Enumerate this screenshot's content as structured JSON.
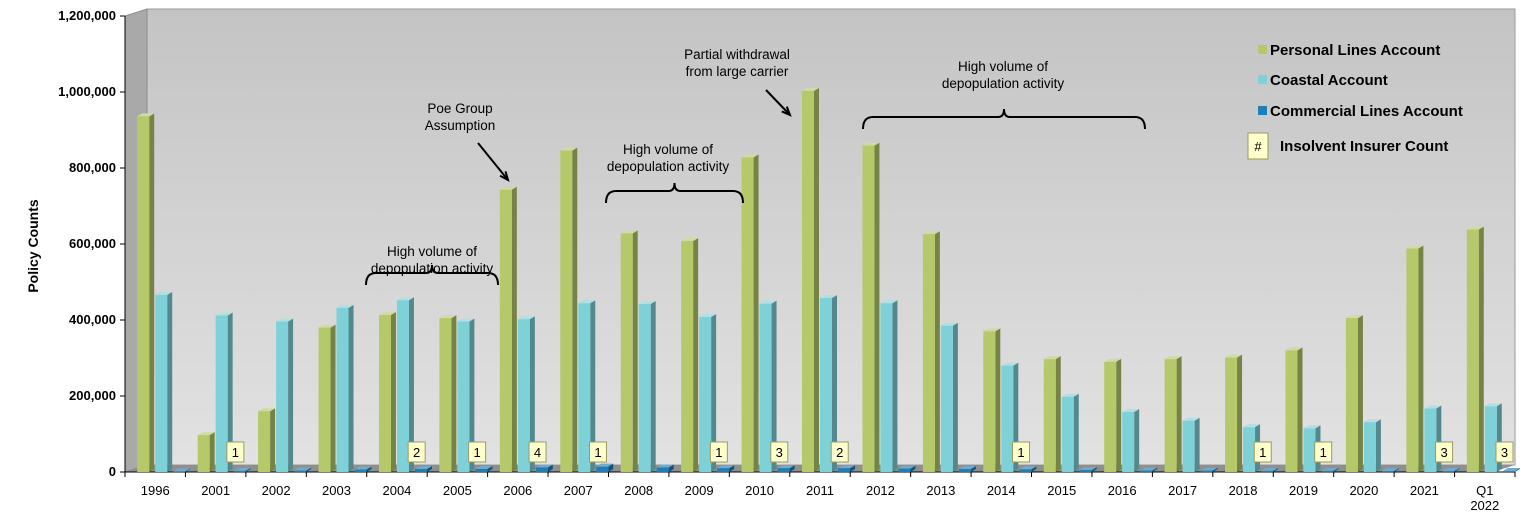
{
  "chart_data": {
    "type": "bar",
    "ylabel": "Policy Counts",
    "ylim": [
      0,
      1200000
    ],
    "yticks": [
      0,
      200000,
      400000,
      600000,
      800000,
      1000000,
      1200000
    ],
    "ytick_labels": [
      "0",
      "200,000",
      "400,000",
      "600,000",
      "800,000",
      "1,000,000",
      "1,200,000"
    ],
    "categories": [
      "1996",
      "2001",
      "2002",
      "2003",
      "2004",
      "2005",
      "2006",
      "2007",
      "2008",
      "2009",
      "2010",
      "2011",
      "2012",
      "2013",
      "2014",
      "2015",
      "2016",
      "2017",
      "2018",
      "2019",
      "2020",
      "2021",
      "Q1 2022"
    ],
    "category_labels": [
      [
        "1996"
      ],
      [
        "2001"
      ],
      [
        "2002"
      ],
      [
        "2003"
      ],
      [
        "2004"
      ],
      [
        "2005"
      ],
      [
        "2006"
      ],
      [
        "2007"
      ],
      [
        "2008"
      ],
      [
        "2009"
      ],
      [
        "2010"
      ],
      [
        "2011"
      ],
      [
        "2012"
      ],
      [
        "2013"
      ],
      [
        "2014"
      ],
      [
        "2015"
      ],
      [
        "2016"
      ],
      [
        "2017"
      ],
      [
        "2018"
      ],
      [
        "2019"
      ],
      [
        "2020"
      ],
      [
        "2021"
      ],
      [
        "Q1",
        "2022"
      ]
    ],
    "series": [
      {
        "name": "Personal Lines Account",
        "color": "#b5c96a",
        "values": [
          936000,
          97000,
          160000,
          380000,
          413000,
          405000,
          743000,
          846000,
          628000,
          608000,
          828000,
          1003000,
          859000,
          626000,
          370000,
          297000,
          290000,
          297000,
          301000,
          320000,
          405000,
          588000,
          638000
        ]
      },
      {
        "name": "Coastal Account",
        "color": "#7fd1d8",
        "values": [
          466000,
          412000,
          396000,
          432000,
          452000,
          396000,
          402000,
          444000,
          442000,
          408000,
          443000,
          458000,
          444000,
          385000,
          280000,
          198000,
          158000,
          135000,
          118000,
          115000,
          131000,
          167000,
          173000
        ]
      },
      {
        "name": "Commercial Lines Account",
        "color": "#1e7fb8",
        "values": [
          1500,
          3000,
          3500,
          6500,
          8000,
          8000,
          12000,
          14000,
          12000,
          10000,
          10000,
          10000,
          9000,
          8000,
          7000,
          5000,
          4000,
          3500,
          3000,
          3000,
          2500,
          2500,
          2500
        ]
      }
    ],
    "insolvent_counts": [
      null,
      "1",
      null,
      null,
      "2",
      "1",
      "4",
      "1",
      null,
      "1",
      "3",
      "2",
      null,
      null,
      "1",
      null,
      null,
      null,
      "1",
      "1",
      null,
      "3",
      "3"
    ],
    "legend": {
      "placement": "top-right",
      "entries": [
        "Personal Lines Account",
        "Coastal Account",
        "Commercial Lines Account"
      ],
      "badge_symbol": "#",
      "badge_label": "Insolvent Insurer Count"
    },
    "annotations": [
      {
        "id": "depop-2004",
        "lines": [
          "High volume of",
          "depopulation activity"
        ]
      },
      {
        "id": "poe",
        "lines": [
          "Poe Group",
          "Assumption"
        ]
      },
      {
        "id": "depop-2008",
        "lines": [
          "High volume of",
          "depopulation activity"
        ]
      },
      {
        "id": "withdrawal",
        "lines": [
          "Partial withdrawal",
          "from large carrier"
        ]
      },
      {
        "id": "depop-2012",
        "lines": [
          "High volume of",
          "depopulation activity"
        ]
      }
    ],
    "grid": false,
    "style": "3d"
  }
}
